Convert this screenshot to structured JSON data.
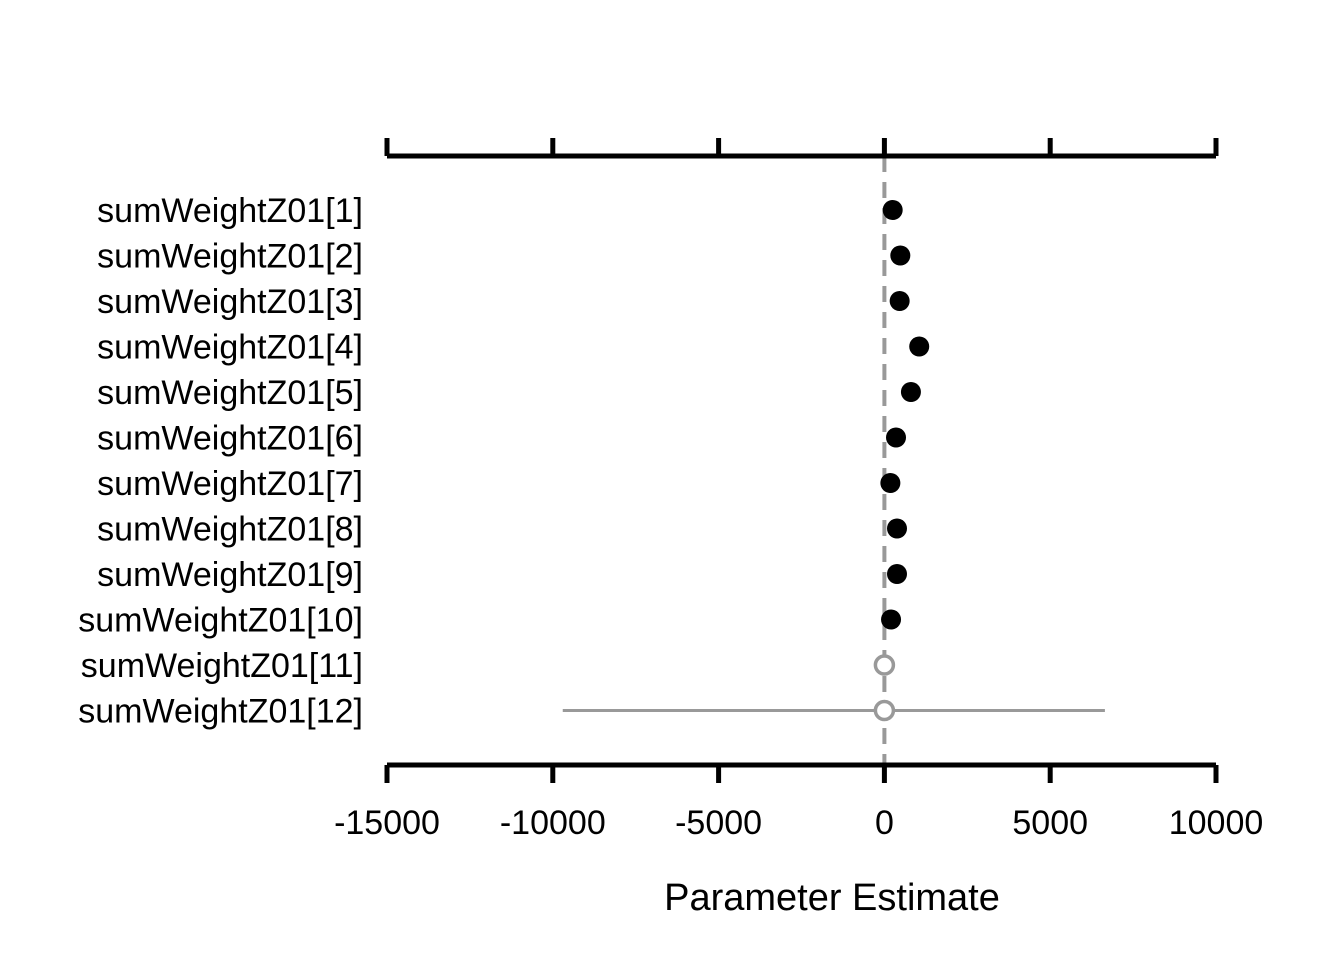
{
  "chart_data": {
    "type": "scatter",
    "xlabel": "Parameter Estimate",
    "xlim": [
      -15000,
      10000
    ],
    "xticks": [
      -15000,
      -10000,
      -5000,
      0,
      5000,
      10000
    ],
    "tick_labels": [
      "-15000",
      "-10000",
      "-5000",
      "0",
      "5000",
      "10000"
    ],
    "reference_line": 0,
    "rows": [
      {
        "label": "sumWeightZ01[1]",
        "value": 250,
        "lower": null,
        "upper": null,
        "filled": true
      },
      {
        "label": "sumWeightZ01[2]",
        "value": 480,
        "lower": null,
        "upper": null,
        "filled": true
      },
      {
        "label": "sumWeightZ01[3]",
        "value": 460,
        "lower": null,
        "upper": null,
        "filled": true
      },
      {
        "label": "sumWeightZ01[4]",
        "value": 1050,
        "lower": null,
        "upper": null,
        "filled": true
      },
      {
        "label": "sumWeightZ01[5]",
        "value": 800,
        "lower": null,
        "upper": null,
        "filled": true
      },
      {
        "label": "sumWeightZ01[6]",
        "value": 350,
        "lower": null,
        "upper": null,
        "filled": true
      },
      {
        "label": "sumWeightZ01[7]",
        "value": 180,
        "lower": null,
        "upper": null,
        "filled": true
      },
      {
        "label": "sumWeightZ01[8]",
        "value": 380,
        "lower": null,
        "upper": null,
        "filled": true
      },
      {
        "label": "sumWeightZ01[9]",
        "value": 380,
        "lower": null,
        "upper": null,
        "filled": true
      },
      {
        "label": "sumWeightZ01[10]",
        "value": 200,
        "lower": null,
        "upper": null,
        "filled": true
      },
      {
        "label": "sumWeightZ01[11]",
        "value": 0,
        "lower": null,
        "upper": null,
        "filled": false
      },
      {
        "label": "sumWeightZ01[12]",
        "value": 0,
        "lower": -9700,
        "upper": 6650,
        "filled": false
      }
    ],
    "colors": {
      "filled_point": "#000000",
      "open_point": "#999999",
      "interval": "#999999",
      "reference_line": "#999999",
      "axis": "#000000"
    }
  }
}
